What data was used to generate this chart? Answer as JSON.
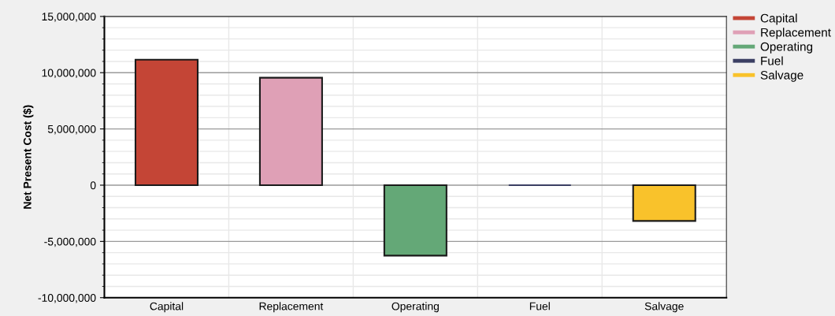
{
  "chart_data": {
    "type": "bar",
    "ylabel": "Net Present Cost ($)",
    "categories": [
      "Capital",
      "Replacement",
      "Operating",
      "Fuel",
      "Salvage"
    ],
    "series": [
      {
        "name": "Capital",
        "color": "#c44536",
        "values": [
          11150000,
          null,
          null,
          null,
          null
        ]
      },
      {
        "name": "Replacement",
        "color": "#dfa0b6",
        "values": [
          null,
          9550000,
          null,
          null,
          null
        ]
      },
      {
        "name": "Operating",
        "color": "#64a877",
        "values": [
          null,
          null,
          -6260000,
          null,
          null
        ]
      },
      {
        "name": "Fuel",
        "color": "#3b3f63",
        "values": [
          null,
          null,
          null,
          0,
          null
        ]
      },
      {
        "name": "Salvage",
        "color": "#f9c22b",
        "values": [
          null,
          null,
          null,
          null,
          -3180000
        ]
      }
    ],
    "ylim": [
      -10000000,
      15000000
    ],
    "yticks": [
      {
        "value": -10000000,
        "label": "-10,000,000"
      },
      {
        "value": -5000000,
        "label": "-5,000,000"
      },
      0,
      {
        "value": 5000000,
        "label": "5,000,000"
      },
      {
        "value": 10000000,
        "label": "10,000,000"
      },
      {
        "value": 15000000,
        "label": "15,000,000"
      }
    ],
    "grid": true,
    "legend": "top right"
  }
}
